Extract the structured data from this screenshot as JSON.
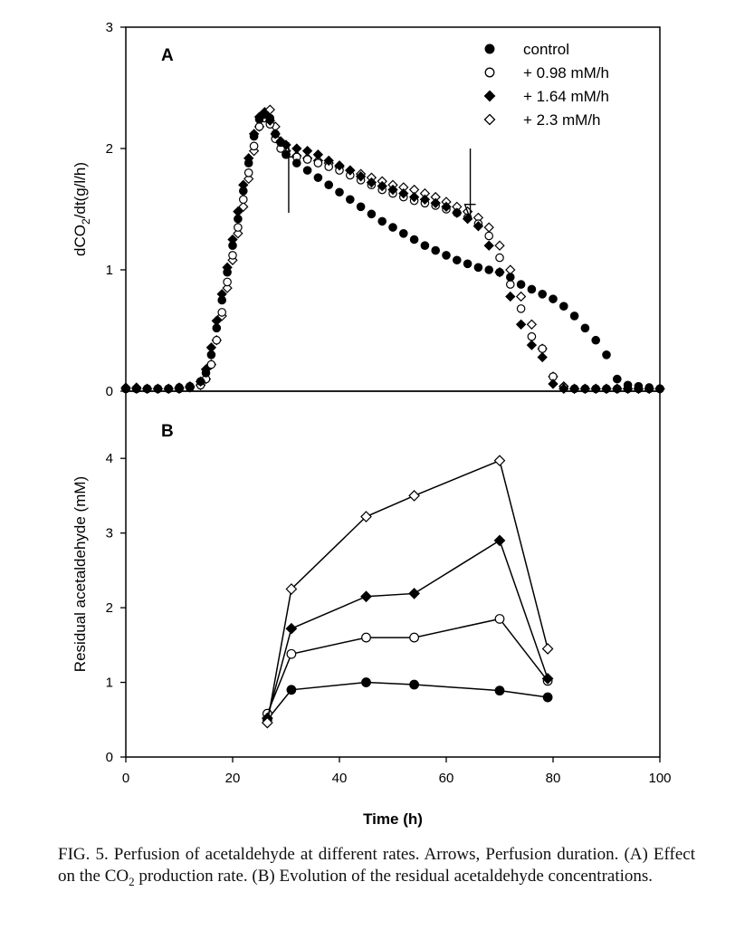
{
  "colors": {
    "ink": "#000000",
    "background": "#ffffff"
  },
  "chart_data": [
    {
      "panel": "A",
      "type": "scatter",
      "title": "",
      "xlabel": "",
      "ylabel": "dCO2/dt(g/l/h)",
      "ylabel_main": "dCO",
      "ylabel_sub": "2",
      "ylabel_tail": "/dt(g/l/h)",
      "xlim": [
        0,
        100
      ],
      "ylim": [
        0,
        3
      ],
      "yticks": [
        "0",
        "1",
        "2",
        "3"
      ],
      "legend_position": "top-right",
      "annotations": [
        {
          "type": "arrow-up",
          "x": 30.5,
          "y_tip": 2.05,
          "y_tail": 1.47
        },
        {
          "type": "arrow-down",
          "x": 64.5,
          "y_tip": 1.42,
          "y_tail": 2.0
        }
      ],
      "series": [
        {
          "name": "control",
          "marker": "filled-circle",
          "x": [
            0,
            2,
            4,
            6,
            8,
            10,
            12,
            14,
            15,
            16,
            17,
            18,
            19,
            20,
            21,
            22,
            23,
            24,
            25,
            26,
            27,
            28,
            29,
            30,
            32,
            34,
            36,
            38,
            40,
            42,
            44,
            46,
            48,
            50,
            52,
            54,
            56,
            58,
            60,
            62,
            64,
            66,
            68,
            70,
            72,
            74,
            76,
            78,
            80,
            82,
            84,
            86,
            88,
            90,
            92,
            94,
            96,
            98,
            100
          ],
          "y": [
            0.02,
            0.02,
            0.02,
            0.02,
            0.02,
            0.03,
            0.04,
            0.08,
            0.15,
            0.3,
            0.52,
            0.75,
            0.98,
            1.2,
            1.42,
            1.65,
            1.88,
            2.1,
            2.24,
            2.28,
            2.25,
            2.12,
            2.05,
            1.95,
            1.88,
            1.82,
            1.76,
            1.7,
            1.64,
            1.58,
            1.52,
            1.46,
            1.4,
            1.35,
            1.3,
            1.25,
            1.2,
            1.16,
            1.12,
            1.08,
            1.05,
            1.02,
            1.0,
            0.98,
            0.94,
            0.88,
            0.84,
            0.8,
            0.76,
            0.7,
            0.62,
            0.52,
            0.42,
            0.3,
            0.1,
            0.05,
            0.04,
            0.03,
            0.02
          ]
        },
        {
          "name": "+ 0.98 mM/h",
          "marker": "open-circle",
          "x": [
            0,
            2,
            4,
            6,
            8,
            10,
            12,
            14,
            15,
            16,
            17,
            18,
            19,
            20,
            21,
            22,
            23,
            24,
            25,
            26,
            27,
            28,
            29,
            30,
            32,
            34,
            36,
            38,
            40,
            42,
            44,
            46,
            48,
            50,
            52,
            54,
            56,
            58,
            60,
            62,
            64,
            66,
            68,
            70,
            72,
            74,
            76,
            78,
            80,
            82,
            84,
            86,
            88,
            90,
            92,
            94,
            96,
            98,
            100
          ],
          "y": [
            0.02,
            0.02,
            0.02,
            0.02,
            0.02,
            0.02,
            0.03,
            0.05,
            0.1,
            0.22,
            0.42,
            0.65,
            0.9,
            1.12,
            1.35,
            1.58,
            1.8,
            2.02,
            2.18,
            2.25,
            2.2,
            2.08,
            2.0,
            1.95,
            1.93,
            1.91,
            1.88,
            1.85,
            1.82,
            1.78,
            1.74,
            1.7,
            1.66,
            1.63,
            1.6,
            1.57,
            1.55,
            1.53,
            1.5,
            1.47,
            1.43,
            1.38,
            1.28,
            1.1,
            0.88,
            0.68,
            0.45,
            0.35,
            0.12,
            0.03,
            0.02,
            0.02,
            0.02,
            0.02,
            0.02,
            0.02,
            0.02,
            0.02,
            0.02
          ]
        },
        {
          "name": "+ 1.64 mM/h",
          "marker": "filled-diamond",
          "x": [
            0,
            2,
            4,
            6,
            8,
            10,
            12,
            14,
            15,
            16,
            17,
            18,
            19,
            20,
            21,
            22,
            23,
            24,
            25,
            26,
            27,
            28,
            29,
            30,
            32,
            34,
            36,
            38,
            40,
            42,
            44,
            46,
            48,
            50,
            52,
            54,
            56,
            58,
            60,
            62,
            64,
            66,
            68,
            70,
            72,
            74,
            76,
            78,
            80,
            82,
            84,
            86,
            88,
            90,
            92,
            94,
            96,
            98,
            100
          ],
          "y": [
            0.02,
            0.02,
            0.02,
            0.02,
            0.02,
            0.03,
            0.04,
            0.08,
            0.18,
            0.36,
            0.58,
            0.8,
            1.02,
            1.25,
            1.48,
            1.7,
            1.92,
            2.12,
            2.26,
            2.29,
            2.23,
            2.12,
            2.06,
            2.03,
            2.0,
            1.98,
            1.95,
            1.9,
            1.86,
            1.82,
            1.77,
            1.72,
            1.69,
            1.66,
            1.63,
            1.6,
            1.58,
            1.55,
            1.52,
            1.47,
            1.42,
            1.36,
            1.2,
            0.98,
            0.78,
            0.55,
            0.38,
            0.28,
            0.06,
            0.02,
            0.02,
            0.02,
            0.02,
            0.02,
            0.02,
            0.02,
            0.02,
            0.02,
            0.02
          ]
        },
        {
          "name": "+ 2.3 mM/h",
          "marker": "open-diamond",
          "x": [
            0,
            2,
            4,
            6,
            8,
            10,
            12,
            14,
            15,
            16,
            17,
            18,
            19,
            20,
            21,
            22,
            23,
            24,
            25,
            26,
            27,
            28,
            29,
            30,
            32,
            34,
            36,
            38,
            40,
            42,
            44,
            46,
            48,
            50,
            52,
            54,
            56,
            58,
            60,
            62,
            64,
            66,
            68,
            70,
            72,
            74,
            76,
            78,
            80,
            82,
            84,
            86,
            88,
            90,
            92,
            94,
            96,
            98,
            100
          ],
          "y": [
            0.03,
            0.03,
            0.02,
            0.02,
            0.02,
            0.02,
            0.03,
            0.05,
            0.1,
            0.22,
            0.42,
            0.62,
            0.85,
            1.08,
            1.3,
            1.52,
            1.75,
            1.98,
            2.18,
            2.3,
            2.32,
            2.18,
            2.05,
            1.98,
            1.94,
            1.92,
            1.9,
            1.88,
            1.85,
            1.82,
            1.79,
            1.76,
            1.73,
            1.7,
            1.68,
            1.66,
            1.63,
            1.6,
            1.56,
            1.52,
            1.48,
            1.43,
            1.35,
            1.2,
            1.0,
            0.78,
            0.55,
            0.35,
            0.12,
            0.04,
            0.02,
            0.02,
            0.02,
            0.02,
            0.02,
            0.02,
            0.02,
            0.02,
            0.02
          ]
        }
      ]
    },
    {
      "panel": "B",
      "type": "line",
      "title": "",
      "xlabel": "Time (h)",
      "ylabel": "Residual acetaldehyde (mM)",
      "xlim": [
        0,
        100
      ],
      "ylim": [
        0,
        4.9
      ],
      "xticks": [
        "0",
        "20",
        "40",
        "60",
        "80",
        "100"
      ],
      "yticks": [
        "0",
        "1",
        "2",
        "3",
        "4"
      ],
      "series": [
        {
          "name": "control",
          "marker": "filled-circle",
          "x": [
            26.5,
            31,
            45,
            54,
            70,
            79
          ],
          "y": [
            0.5,
            0.9,
            1.0,
            0.97,
            0.89,
            0.8
          ]
        },
        {
          "name": "+ 0.98 mM/h",
          "marker": "open-circle",
          "x": [
            26.5,
            31,
            45,
            54,
            70,
            79
          ],
          "y": [
            0.58,
            1.38,
            1.6,
            1.6,
            1.85,
            1.02
          ]
        },
        {
          "name": "+ 1.64 mM/h",
          "marker": "filled-diamond",
          "x": [
            26.5,
            31,
            45,
            54,
            70,
            79
          ],
          "y": [
            0.52,
            1.72,
            2.15,
            2.19,
            2.9,
            1.05
          ]
        },
        {
          "name": "+ 2.3 mM/h",
          "marker": "open-diamond",
          "x": [
            26.5,
            31,
            45,
            54,
            70,
            79
          ],
          "y": [
            0.46,
            2.25,
            3.22,
            3.5,
            3.97,
            1.45
          ]
        }
      ]
    }
  ],
  "caption": {
    "text": "FIG. 5.  Perfusion of acetaldehyde at different rates. Arrows, Perfusion duration. (A) Effect on the CO2 production rate. (B) Evolution of the residual acetaldehyde concentrations.",
    "part1": "FIG. 5.  Perfusion of acetaldehyde at different rates. Arrows, Perfusion duration. (A) Effect on the CO",
    "subscript": "2",
    "part2": " production rate. (B) Evolution of the residual acetaldehyde concentrations."
  }
}
